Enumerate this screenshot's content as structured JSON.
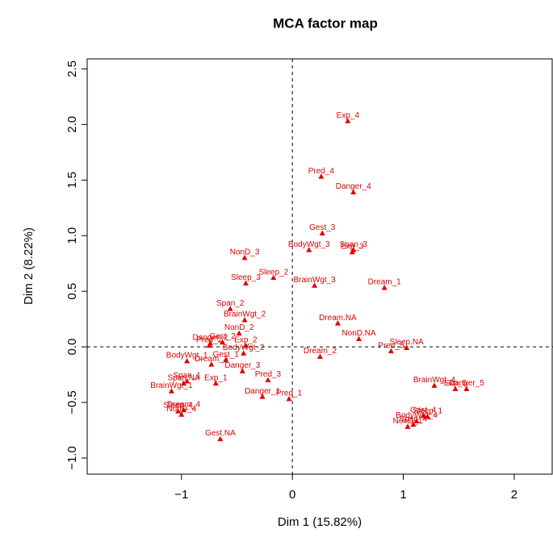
{
  "chart_data": {
    "type": "scatter",
    "title": "MCA factor map",
    "x_label": "Dim 1 (15.82%)",
    "y_label": "Dim 2 (8.22%)",
    "color": "#e00000",
    "xlim": [
      -1.85,
      2.35
    ],
    "ylim": [
      -1.145,
      2.59
    ],
    "xticks": [
      {
        "value": -1,
        "label": "−1"
      },
      0,
      1,
      2
    ],
    "yticks": [
      {
        "value": -1.0,
        "label": "−1.0"
      },
      {
        "value": -0.5,
        "label": "−0.5"
      },
      {
        "value": 0.0,
        "label": "0.0"
      },
      {
        "value": 0.5,
        "label": "0.5"
      },
      {
        "value": 1.0,
        "label": "1.0"
      },
      {
        "value": 1.5,
        "label": "1.5"
      },
      {
        "value": 2.0,
        "label": "2.0"
      },
      {
        "value": 2.5,
        "label": "2.5"
      }
    ],
    "labels": [
      "Exp_4",
      "Pred_4",
      "Danger_4",
      "Gest_3",
      "Span_3",
      "Exp_3",
      "BodyWgt_3",
      "NonD_3",
      "Dream_1",
      "Sleep_2",
      "Sleep_3",
      "BrainWgt_3",
      "Span_2",
      "BrainWgt_2",
      "Dream.NA",
      "NonD_2",
      "Danger_2",
      "Exp_2",
      "Gest_2",
      "Pred_2",
      "NonD.NA",
      "Sleep.NA",
      "Pred_5",
      "Gest_1",
      "BodyWgt_2",
      "Dream_2",
      "BodyWgt_1",
      "Dream_3",
      "Pred_3",
      "Danger_3",
      "Span_1",
      "Span.NA",
      "Exp_1",
      "Danger_1",
      "Pred_1",
      "BrainWgt_1",
      "Dream_4",
      "Sleep_4",
      "NonD_4",
      "Gest.NA",
      "BrainWgt_4",
      "Danger_5",
      "Exp_5",
      "BodyWgt_4",
      "Sleep_1",
      "Gest_4",
      "NonD_1",
      "Span_4"
    ],
    "x": [
      0.5,
      0.26,
      0.55,
      0.27,
      0.55,
      0.54,
      0.15,
      -0.43,
      0.83,
      -0.17,
      -0.42,
      0.2,
      -0.56,
      -0.43,
      0.41,
      -0.48,
      -0.74,
      -0.42,
      -0.63,
      -0.75,
      0.6,
      1.03,
      0.89,
      -0.6,
      -0.44,
      0.25,
      -0.95,
      -0.73,
      -0.22,
      -0.45,
      -0.95,
      -0.98,
      -0.69,
      -0.27,
      -0.03,
      -1.09,
      -0.98,
      -1.03,
      -1.0,
      -0.65,
      1.28,
      1.57,
      1.47,
      1.12,
      1.22,
      1.18,
      1.04,
      1.09
    ],
    "y": [
      2.03,
      1.53,
      1.39,
      1.02,
      0.87,
      0.85,
      0.87,
      0.8,
      0.53,
      0.62,
      0.57,
      0.55,
      0.34,
      0.24,
      0.21,
      0.12,
      0.03,
      0.01,
      0.04,
      0.01,
      0.07,
      -0.01,
      -0.04,
      -0.12,
      -0.06,
      -0.09,
      -0.13,
      -0.16,
      -0.3,
      -0.22,
      -0.31,
      -0.33,
      -0.33,
      -0.45,
      -0.47,
      -0.4,
      -0.57,
      -0.58,
      -0.61,
      -0.83,
      -0.35,
      -0.38,
      -0.38,
      -0.67,
      -0.63,
      -0.62,
      -0.72,
      -0.7
    ]
  }
}
